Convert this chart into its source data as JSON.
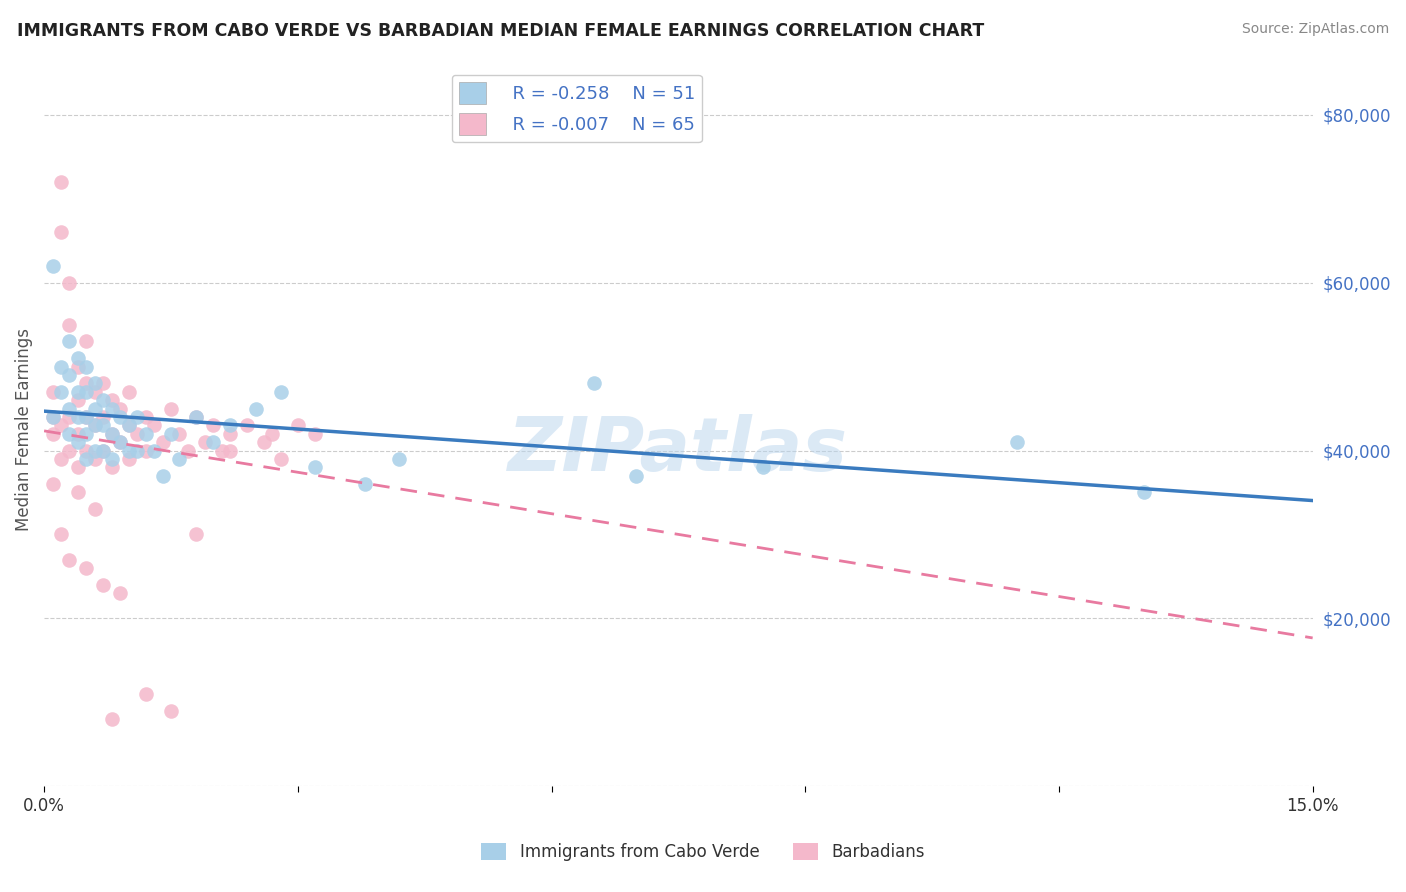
{
  "title": "IMMIGRANTS FROM CABO VERDE VS BARBADIAN MEDIAN FEMALE EARNINGS CORRELATION CHART",
  "source": "Source: ZipAtlas.com",
  "ylabel": "Median Female Earnings",
  "xmin": 0.0,
  "xmax": 0.15,
  "ymin": 0,
  "ymax": 85000,
  "yticks": [
    0,
    20000,
    40000,
    60000,
    80000
  ],
  "ytick_labels": [
    "",
    "$20,000",
    "$40,000",
    "$60,000",
    "$80,000"
  ],
  "xticks": [
    0.0,
    0.03,
    0.06,
    0.09,
    0.12,
    0.15
  ],
  "xtick_labels": [
    "0.0%",
    "",
    "",
    "",
    "",
    "15.0%"
  ],
  "cabo_verde_R": -0.258,
  "cabo_verde_N": 51,
  "barbadian_R": -0.007,
  "barbadian_N": 65,
  "blue_color": "#a8cfe8",
  "pink_color": "#f4b8cb",
  "blue_line_color": "#3a7bbf",
  "pink_line_color": "#e87aa0",
  "grid_color": "#cccccc",
  "title_color": "#222222",
  "label_color": "#4472c4",
  "watermark": "ZIPatlas",
  "cabo_verde_x": [
    0.001,
    0.001,
    0.002,
    0.002,
    0.003,
    0.003,
    0.003,
    0.003,
    0.004,
    0.004,
    0.004,
    0.004,
    0.005,
    0.005,
    0.005,
    0.005,
    0.005,
    0.006,
    0.006,
    0.006,
    0.006,
    0.007,
    0.007,
    0.007,
    0.008,
    0.008,
    0.008,
    0.009,
    0.009,
    0.01,
    0.01,
    0.011,
    0.011,
    0.012,
    0.013,
    0.014,
    0.015,
    0.016,
    0.018,
    0.02,
    0.022,
    0.025,
    0.028,
    0.032,
    0.038,
    0.042,
    0.065,
    0.07,
    0.085,
    0.115,
    0.13
  ],
  "cabo_verde_y": [
    62000,
    44000,
    50000,
    47000,
    53000,
    49000,
    45000,
    42000,
    51000,
    47000,
    44000,
    41000,
    50000,
    47000,
    44000,
    42000,
    39000,
    48000,
    45000,
    43000,
    40000,
    46000,
    43000,
    40000,
    45000,
    42000,
    39000,
    44000,
    41000,
    43000,
    40000,
    44000,
    40000,
    42000,
    40000,
    37000,
    42000,
    39000,
    44000,
    41000,
    43000,
    45000,
    47000,
    38000,
    36000,
    39000,
    48000,
    37000,
    38000,
    41000,
    35000
  ],
  "barbadian_x": [
    0.001,
    0.001,
    0.001,
    0.002,
    0.002,
    0.002,
    0.002,
    0.003,
    0.003,
    0.003,
    0.003,
    0.004,
    0.004,
    0.004,
    0.004,
    0.005,
    0.005,
    0.005,
    0.005,
    0.006,
    0.006,
    0.006,
    0.007,
    0.007,
    0.007,
    0.008,
    0.008,
    0.008,
    0.009,
    0.009,
    0.01,
    0.01,
    0.01,
    0.011,
    0.012,
    0.012,
    0.013,
    0.014,
    0.015,
    0.016,
    0.017,
    0.018,
    0.019,
    0.02,
    0.021,
    0.022,
    0.024,
    0.026,
    0.028,
    0.03,
    0.032,
    0.002,
    0.003,
    0.005,
    0.007,
    0.009,
    0.012,
    0.015,
    0.018,
    0.022,
    0.027,
    0.001,
    0.004,
    0.006,
    0.008
  ],
  "barbadian_y": [
    44000,
    47000,
    42000,
    72000,
    66000,
    43000,
    39000,
    60000,
    55000,
    44000,
    40000,
    50000,
    46000,
    42000,
    38000,
    53000,
    48000,
    44000,
    40000,
    47000,
    43000,
    39000,
    48000,
    44000,
    40000,
    46000,
    42000,
    38000,
    45000,
    41000,
    47000,
    43000,
    39000,
    42000,
    44000,
    40000,
    43000,
    41000,
    45000,
    42000,
    40000,
    44000,
    41000,
    43000,
    40000,
    42000,
    43000,
    41000,
    39000,
    43000,
    42000,
    30000,
    27000,
    26000,
    24000,
    23000,
    11000,
    9000,
    30000,
    40000,
    42000,
    36000,
    35000,
    33000,
    8000
  ]
}
